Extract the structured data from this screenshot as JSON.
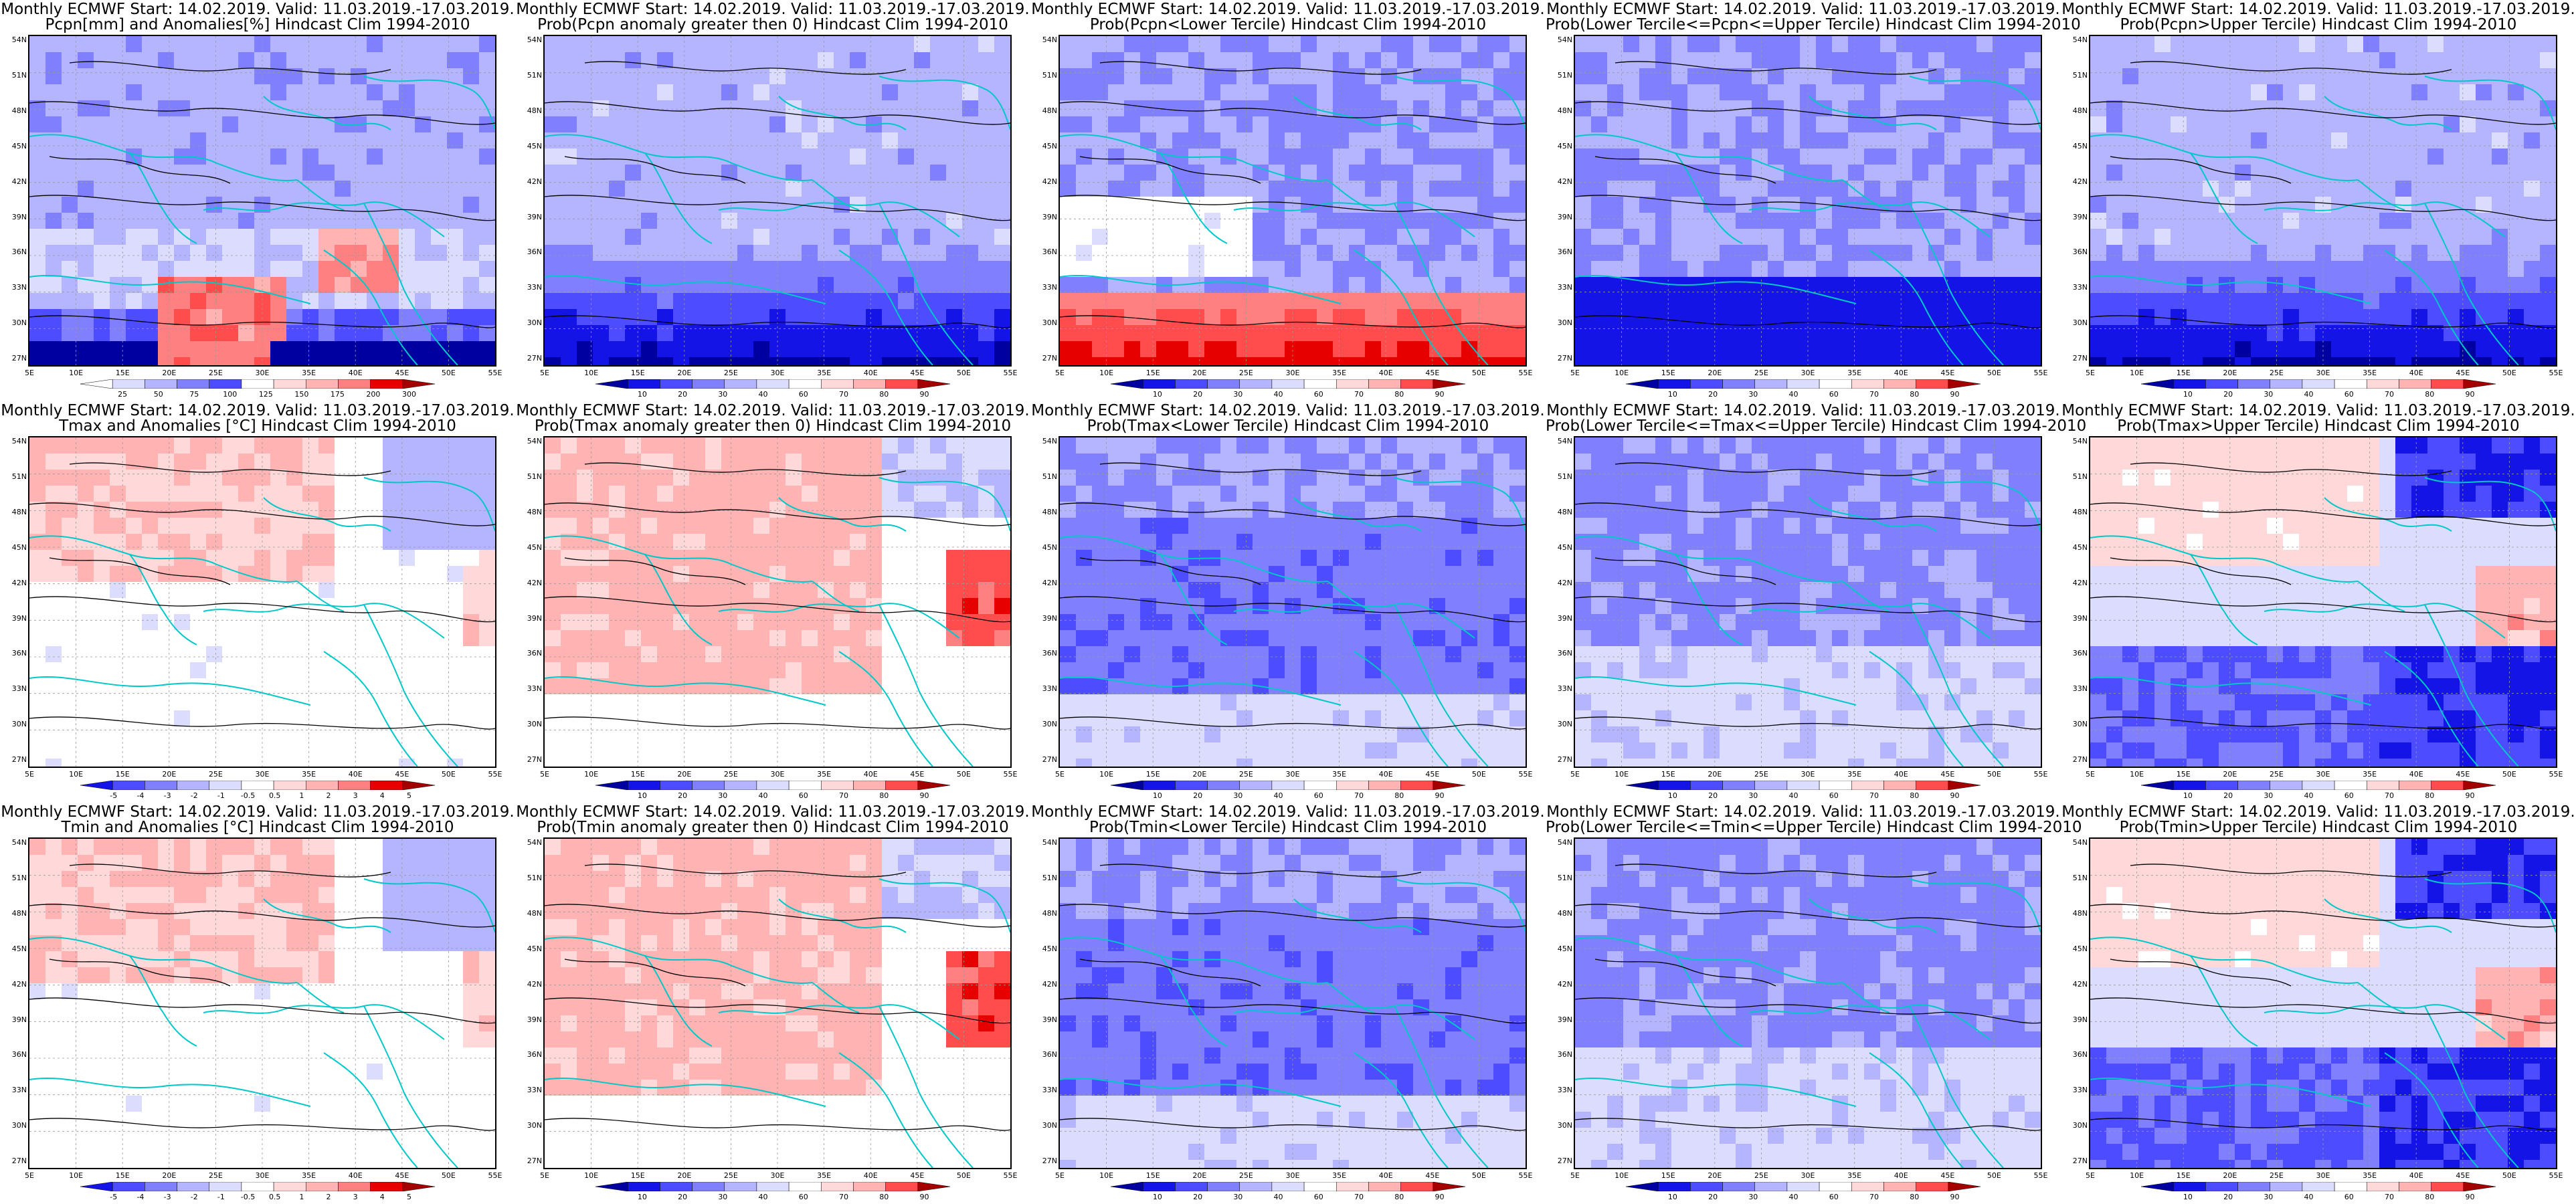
{
  "colors": {
    "red_scale": [
      "#ffffff",
      "#ffd9d9",
      "#ffb3b3",
      "#ff8080",
      "#ff4d4d",
      "#e60000",
      "#a50000"
    ],
    "blue_scale": [
      "#ffffff",
      "#dcdcff",
      "#b4b4ff",
      "#8080ff",
      "#4d4dff",
      "#1414e6",
      "#0000a0"
    ],
    "coast": "#00c8c8",
    "contour": "#000000"
  },
  "lat_labels": [
    "54N",
    "51N",
    "48N",
    "45N",
    "42N",
    "39N",
    "36N",
    "33N",
    "30N",
    "27N"
  ],
  "lon_labels": [
    "5E",
    "10E",
    "15E",
    "20E",
    "25E",
    "30E",
    "35E",
    "40E",
    "45E",
    "50E",
    "55E"
  ],
  "panels": [
    {
      "id": "pcpn-anom",
      "line1": "Monthly ECMWF Start: 14.02.2019. Valid: 11.03.2019.-17.03.2019.",
      "line2": "Pcpn[mm] and Anomalies[%] Hindcast Clim 1994-2010",
      "scale": "anom",
      "pattern": "pcpn_anom",
      "cb_labels": [
        "25",
        "50",
        "75",
        "100",
        "125",
        "150",
        "175",
        "200",
        "300"
      ]
    },
    {
      "id": "pcpn-prob-pos",
      "line1": "Monthly ECMWF Start: 14.02.2019. Valid: 11.03.2019.-17.03.2019.",
      "line2": "Prob(Pcpn anomaly greater then 0) Hindcast Clim 1994-2010",
      "scale": "prob",
      "pattern": "pcpn_blue",
      "cb_labels": [
        "10",
        "20",
        "30",
        "40",
        "60",
        "70",
        "80",
        "90"
      ]
    },
    {
      "id": "pcpn-lower",
      "line1": "Monthly ECMWF Start: 14.02.2019. Valid: 11.03.2019.-17.03.2019.",
      "line2": "Prob(Pcpn<Lower Tercile) Hindcast Clim 1994-2010",
      "scale": "prob",
      "pattern": "pcpn_red_south",
      "cb_labels": [
        "10",
        "20",
        "30",
        "40",
        "60",
        "70",
        "80",
        "90"
      ]
    },
    {
      "id": "pcpn-middle",
      "line1": "Monthly ECMWF Start: 14.02.2019. Valid: 11.03.2019.-17.03.2019.",
      "line2": "Prob(Lower Tercile<=Pcpn<=Upper Tercile) Hindcast Clim 1994-2010",
      "scale": "prob",
      "pattern": "pcpn_blue_dark",
      "cb_labels": [
        "10",
        "20",
        "30",
        "40",
        "60",
        "70",
        "80",
        "90"
      ]
    },
    {
      "id": "pcpn-upper",
      "line1": "Monthly ECMWF Start: 14.02.2019. Valid: 11.03.2019.-17.03.2019.",
      "line2": "Prob(Pcpn>Upper Tercile) Hindcast Clim 1994-2010",
      "scale": "prob",
      "pattern": "pcpn_blue",
      "cb_labels": [
        "10",
        "20",
        "30",
        "40",
        "60",
        "70",
        "80",
        "90"
      ]
    },
    {
      "id": "tmax-anom",
      "line1": "Monthly ECMWF Start: 14.02.2019. Valid: 11.03.2019.-17.03.2019.",
      "line2": "Tmax and Anomalies [°C] Hindcast Clim 1994-2010",
      "scale": "anomt",
      "pattern": "t_warm_north",
      "cb_labels": [
        "-5",
        "-4",
        "-3",
        "-2",
        "-1",
        "-0.5",
        "0.5",
        "1",
        "2",
        "3",
        "4",
        "5"
      ]
    },
    {
      "id": "tmax-prob-pos",
      "line1": "Monthly ECMWF Start: 14.02.2019. Valid: 11.03.2019.-17.03.2019.",
      "line2": "Prob(Tmax anomaly greater then 0) Hindcast Clim 1994-2010",
      "scale": "prob",
      "pattern": "t_warm_wide",
      "cb_labels": [
        "10",
        "20",
        "30",
        "40",
        "60",
        "70",
        "80",
        "90"
      ]
    },
    {
      "id": "tmax-lower",
      "line1": "Monthly ECMWF Start: 14.02.2019. Valid: 11.03.2019.-17.03.2019.",
      "line2": "Prob(Tmax<Lower Tercile) Hindcast Clim 1994-2010",
      "scale": "prob",
      "pattern": "t_blue_main",
      "cb_labels": [
        "10",
        "20",
        "30",
        "40",
        "60",
        "70",
        "80",
        "90"
      ]
    },
    {
      "id": "tmax-middle",
      "line1": "Monthly ECMWF Start: 14.02.2019. Valid: 11.03.2019.-17.03.2019.",
      "line2": "Prob(Lower Tercile<=Tmax<=Upper Tercile) Hindcast Clim 1994-2010",
      "scale": "prob",
      "pattern": "t_blue_mid",
      "cb_labels": [
        "10",
        "20",
        "30",
        "40",
        "60",
        "70",
        "80",
        "90"
      ]
    },
    {
      "id": "tmax-upper",
      "line1": "Monthly ECMWF Start: 14.02.2019. Valid: 11.03.2019.-17.03.2019.",
      "line2": "Prob(Tmax>Upper Tercile) Hindcast Clim 1994-2010",
      "scale": "prob",
      "pattern": "t_blue_south",
      "cb_labels": [
        "10",
        "20",
        "30",
        "40",
        "60",
        "70",
        "80",
        "90"
      ]
    },
    {
      "id": "tmin-anom",
      "line1": "Monthly ECMWF Start: 14.02.2019. Valid: 11.03.2019.-17.03.2019.",
      "line2": "Tmin and Anomalies [°C] Hindcast Clim 1994-2010",
      "scale": "anomt",
      "pattern": "t_warm_north",
      "cb_labels": [
        "-5",
        "-4",
        "-3",
        "-2",
        "-1",
        "-0.5",
        "0.5",
        "1",
        "2",
        "3",
        "4",
        "5"
      ]
    },
    {
      "id": "tmin-prob-pos",
      "line1": "Monthly ECMWF Start: 14.02.2019. Valid: 11.03.2019.-17.03.2019.",
      "line2": "Prob(Tmin anomaly greater then 0) Hindcast Clim 1994-2010",
      "scale": "prob",
      "pattern": "t_warm_wide",
      "cb_labels": [
        "10",
        "20",
        "30",
        "40",
        "60",
        "70",
        "80",
        "90"
      ]
    },
    {
      "id": "tmin-lower",
      "line1": "Monthly ECMWF Start: 14.02.2019. Valid: 11.03.2019.-17.03.2019.",
      "line2": "Prob(Tmin<Lower Tercile) Hindcast Clim 1994-2010",
      "scale": "prob",
      "pattern": "t_blue_main",
      "cb_labels": [
        "10",
        "20",
        "30",
        "40",
        "60",
        "70",
        "80",
        "90"
      ]
    },
    {
      "id": "tmin-middle",
      "line1": "Monthly ECMWF Start: 14.02.2019. Valid: 11.03.2019.-17.03.2019.",
      "line2": "Prob(Lower Tercile<=Tmin<=Upper Tercile) Hindcast Clim 1994-2010",
      "scale": "prob",
      "pattern": "t_blue_mid",
      "cb_labels": [
        "10",
        "20",
        "30",
        "40",
        "60",
        "70",
        "80",
        "90"
      ]
    },
    {
      "id": "tmin-upper",
      "line1": "Monthly ECMWF Start: 14.02.2019. Valid: 11.03.2019.-17.03.2019.",
      "line2": "Prob(Tmin>Upper Tercile) Hindcast Clim 1994-2010",
      "scale": "prob",
      "pattern": "t_blue_south",
      "cb_labels": [
        "10",
        "20",
        "30",
        "40",
        "60",
        "70",
        "80",
        "90"
      ]
    }
  ]
}
